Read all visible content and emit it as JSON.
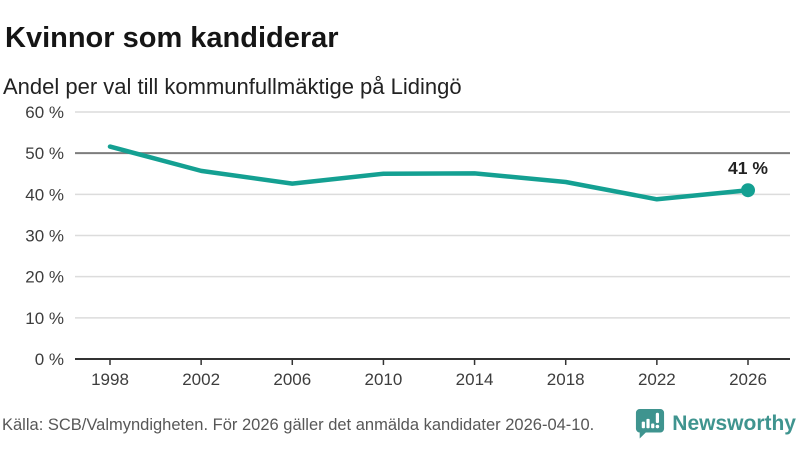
{
  "header": {
    "title": "Kvinnor som kandiderar",
    "subtitle": "Andel per val till kommunfullmäktige på Lidingö"
  },
  "chart_data": {
    "type": "line",
    "title": "Kvinnor som kandiderar",
    "subtitle": "Andel per val till kommunfullmäktige på Lidingö",
    "categories": [
      "1998",
      "2002",
      "2006",
      "2010",
      "2014",
      "2018",
      "2022",
      "2026"
    ],
    "series": [
      {
        "name": "Andel kvinnor som kandiderar",
        "values": [
          51.6,
          45.7,
          42.6,
          45.0,
          45.1,
          43.0,
          38.8,
          41.0
        ]
      }
    ],
    "unit": "%",
    "xlabel": "",
    "ylabel": "",
    "ylim": [
      0,
      60
    ],
    "ytick_step": 10,
    "yticks": [
      "0 %",
      "10 %",
      "20 %",
      "30 %",
      "40 %",
      "50 %",
      "60 %"
    ],
    "grid": true,
    "legend_position": "none",
    "end_label": "41 %",
    "colors": {
      "line": "#14A092",
      "grid": "#DCDCDC",
      "reference_line": "#7D7D7D",
      "axis": "#333333",
      "tick_label": "#3D3D3D",
      "end_label_text": "#222222"
    },
    "reference_line_value": 50
  },
  "footer": {
    "source": "Källa: SCB/Valmyndigheten. För 2026 gäller det anmälda kandidater 2026-04-10.",
    "brand": "Newsworthy",
    "brand_color": "#3F948F",
    "logo_icon": "bar-chart-speech-bubble-icon"
  }
}
